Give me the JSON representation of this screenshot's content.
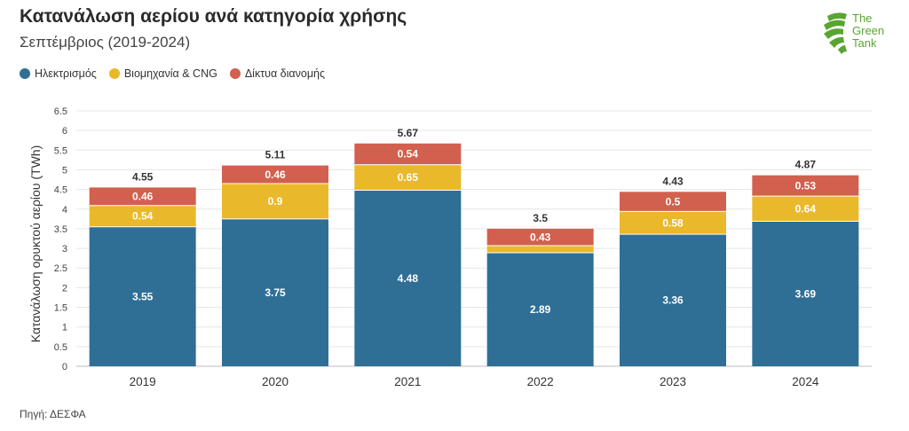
{
  "header": {
    "title": "Κατανάλωση αερίου ανά κατηγορία χρήσης",
    "subtitle": "Σεπτέμβριος (2019-2024)"
  },
  "logo": {
    "line1": "The",
    "line2": "Green",
    "line3": "Tank",
    "color": "#5aa532"
  },
  "footer": {
    "source": "Πηγή: ΔΕΣΦΑ"
  },
  "chart_data": {
    "type": "bar",
    "stacked": true,
    "categories": [
      "2019",
      "2020",
      "2021",
      "2022",
      "2023",
      "2024"
    ],
    "series": [
      {
        "name": "Ηλεκτρισμός",
        "color": "#2f6f96",
        "values": [
          3.55,
          3.75,
          4.48,
          2.89,
          3.36,
          3.69
        ],
        "labels": [
          "3.55",
          "3.75",
          "4.48",
          "2.89",
          "3.36",
          "3.69"
        ]
      },
      {
        "name": "Βιομηχανία & CNG",
        "color": "#eab82b",
        "values": [
          0.54,
          0.9,
          0.65,
          0.18,
          0.58,
          0.64
        ],
        "labels": [
          "0.54",
          "0.9",
          "0.65",
          "",
          "0.58",
          "0.64"
        ]
      },
      {
        "name": "Δίκτυα διανομής",
        "color": "#d2604e",
        "values": [
          0.46,
          0.46,
          0.54,
          0.43,
          0.5,
          0.53
        ],
        "labels": [
          "0.46",
          "0.46",
          "0.54",
          "0.43",
          "0.5",
          "0.53"
        ]
      }
    ],
    "totals": [
      "4.55",
      "5.11",
      "5.67",
      "3.5",
      "4.43",
      "4.87"
    ],
    "ylabel": "Κατανάλωση ορυκτού αερίου (TWh)",
    "ylim": [
      0,
      6.5
    ],
    "yticks": [
      "0",
      "0.5",
      "1",
      "1.5",
      "2",
      "2.5",
      "3",
      "3.5",
      "4",
      "4.5",
      "5",
      "5.5",
      "6",
      "6.5"
    ],
    "grid": true,
    "legend": "top-left"
  }
}
